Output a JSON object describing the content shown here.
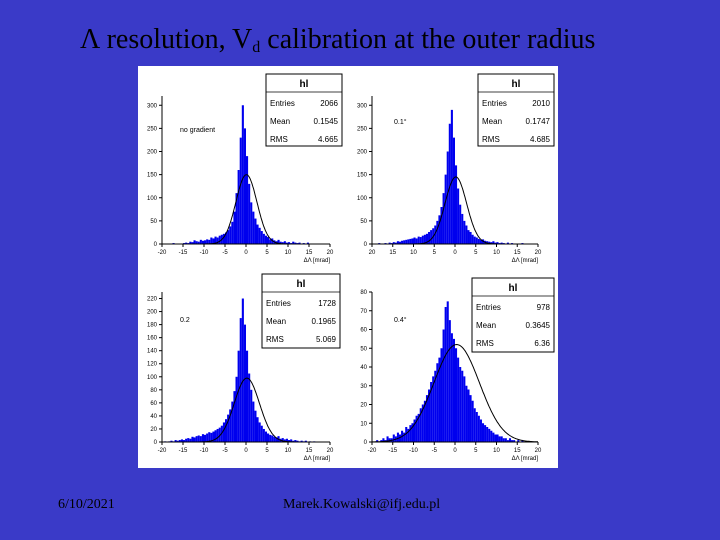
{
  "slide": {
    "title_main_a": "Λ resolution, V",
    "title_sub": "d",
    "title_main_b": " calibration at the outer radius",
    "date": "6/10/2021",
    "email": "Marek.Kowalski@ifj.edu.pl"
  },
  "colors": {
    "background": "#3a3ac8",
    "histogram": "#0000ee",
    "fit_curve": "#000000",
    "panel": "#ffffff"
  },
  "chart_data": [
    {
      "type": "bar",
      "title": "hl",
      "annotation": "no gradient",
      "xlabel": "ΔΛ [mrad]",
      "xlim": [
        -20,
        20
      ],
      "ylim": [
        0,
        320
      ],
      "x_ticks": [
        -20,
        -15,
        -10,
        -5,
        0,
        5,
        10,
        15,
        20
      ],
      "y_ticks": [
        0,
        50,
        100,
        150,
        200,
        250,
        300
      ],
      "stats": [
        {
          "label": "Entries",
          "value": "2066"
        },
        {
          "label": "Mean",
          "value": "0.1545"
        },
        {
          "label": "RMS",
          "value": "4.665"
        }
      ],
      "bin_width": 0.5,
      "bin_start": -20,
      "values": [
        0,
        0,
        0,
        1,
        0,
        2,
        1,
        0,
        1,
        0,
        2,
        3,
        2,
        5,
        4,
        8,
        6,
        5,
        9,
        7,
        8,
        10,
        9,
        14,
        12,
        16,
        14,
        18,
        20,
        22,
        25,
        30,
        38,
        48,
        70,
        110,
        160,
        230,
        300,
        250,
        190,
        130,
        90,
        70,
        55,
        42,
        35,
        28,
        22,
        18,
        15,
        10,
        12,
        8,
        6,
        9,
        5,
        4,
        6,
        3,
        4,
        2,
        5,
        3,
        2,
        3,
        1,
        2,
        1,
        3,
        1,
        0,
        1,
        0,
        1,
        0,
        0,
        0,
        0,
        0
      ],
      "fit_gauss": {
        "amplitude": 150,
        "mean": 0.1,
        "sigma": 2.5
      }
    },
    {
      "type": "bar",
      "title": "hl",
      "annotation": "0.1°",
      "xlabel": "ΔΛ [mrad]",
      "xlim": [
        -20,
        20
      ],
      "ylim": [
        0,
        320
      ],
      "x_ticks": [
        -20,
        -15,
        -10,
        -5,
        0,
        5,
        10,
        15,
        20
      ],
      "x_tick_labels": [
        "20",
        "15",
        "10",
        "5",
        "0",
        "5",
        "10",
        "15",
        "20"
      ],
      "y_ticks": [
        0,
        50,
        100,
        150,
        200,
        250,
        300
      ],
      "stats": [
        {
          "label": "Entries",
          "value": "2010"
        },
        {
          "label": "Mean",
          "value": "0.1747"
        },
        {
          "label": "RMS",
          "value": "4.685"
        }
      ],
      "bin_width": 0.5,
      "bin_start": -20,
      "values": [
        0,
        1,
        0,
        2,
        1,
        0,
        2,
        1,
        3,
        2,
        4,
        3,
        6,
        5,
        7,
        8,
        9,
        10,
        11,
        12,
        14,
        12,
        16,
        15,
        18,
        20,
        22,
        26,
        30,
        34,
        40,
        50,
        62,
        80,
        110,
        150,
        200,
        260,
        290,
        230,
        170,
        120,
        85,
        65,
        50,
        40,
        30,
        26,
        20,
        16,
        14,
        11,
        9,
        10,
        7,
        6,
        5,
        4,
        6,
        3,
        4,
        2,
        3,
        2,
        1,
        3,
        1,
        2,
        1,
        0,
        1,
        0,
        2,
        0,
        0,
        1,
        0,
        0,
        0,
        0
      ],
      "fit_gauss": {
        "amplitude": 145,
        "mean": 0.2,
        "sigma": 2.6
      }
    },
    {
      "type": "bar",
      "title": "hl",
      "annotation": "0.2",
      "xlabel": "ΔΛ [mrad]",
      "xlim": [
        -20,
        20
      ],
      "ylim": [
        0,
        230
      ],
      "x_ticks": [
        -20,
        -15,
        -10,
        -5,
        0,
        5,
        10,
        15,
        20
      ],
      "y_ticks": [
        0,
        20,
        40,
        60,
        80,
        100,
        120,
        140,
        160,
        180,
        200,
        220
      ],
      "stats": [
        {
          "label": "Entries",
          "value": "1728"
        },
        {
          "label": "Mean",
          "value": "0.1965"
        },
        {
          "label": "RMS",
          "value": "5.069"
        }
      ],
      "bin_width": 0.5,
      "bin_start": -20,
      "values": [
        0,
        1,
        0,
        1,
        2,
        1,
        3,
        2,
        3,
        4,
        3,
        5,
        6,
        5,
        8,
        7,
        9,
        10,
        9,
        12,
        11,
        13,
        15,
        14,
        16,
        18,
        20,
        22,
        25,
        30,
        35,
        42,
        50,
        62,
        78,
        100,
        140,
        190,
        220,
        180,
        140,
        105,
        80,
        62,
        48,
        38,
        30,
        25,
        20,
        16,
        13,
        11,
        10,
        8,
        7,
        9,
        5,
        6,
        4,
        5,
        3,
        4,
        2,
        3,
        2,
        1,
        2,
        1,
        2,
        0,
        1,
        0,
        1,
        0,
        0,
        0,
        0,
        0,
        0,
        0
      ],
      "fit_gauss": {
        "amplitude": 98,
        "mean": 0.2,
        "sigma": 3.0
      }
    },
    {
      "type": "bar",
      "title": "hl",
      "annotation": "0.4°",
      "xlabel": "ΔΛ [mrad]",
      "xlim": [
        -20,
        20
      ],
      "ylim": [
        0,
        80
      ],
      "x_ticks": [
        -20,
        -15,
        -10,
        -5,
        0,
        5,
        10,
        15,
        20
      ],
      "y_ticks": [
        0,
        10,
        20,
        30,
        40,
        50,
        60,
        70,
        80
      ],
      "stats": [
        {
          "label": "Entries",
          "value": "978"
        },
        {
          "label": "Mean",
          "value": "0.3645"
        },
        {
          "label": "RMS",
          "value": "6.36"
        }
      ],
      "bin_width": 0.5,
      "bin_start": -20,
      "values": [
        0,
        0,
        1,
        0,
        1,
        2,
        1,
        3,
        2,
        2,
        4,
        3,
        5,
        4,
        6,
        5,
        8,
        7,
        9,
        10,
        12,
        14,
        15,
        18,
        20,
        22,
        25,
        28,
        32,
        35,
        38,
        42,
        45,
        50,
        60,
        72,
        75,
        65,
        58,
        55,
        50,
        45,
        40,
        38,
        35,
        30,
        28,
        25,
        22,
        18,
        16,
        14,
        12,
        10,
        9,
        8,
        7,
        6,
        5,
        4,
        4,
        3,
        3,
        2,
        2,
        1,
        2,
        1,
        1,
        0,
        1,
        0,
        1,
        0,
        0,
        0,
        0,
        0,
        0,
        0
      ],
      "fit_gauss": {
        "amplitude": 52,
        "mean": 0.4,
        "sigma": 5.5
      }
    }
  ]
}
